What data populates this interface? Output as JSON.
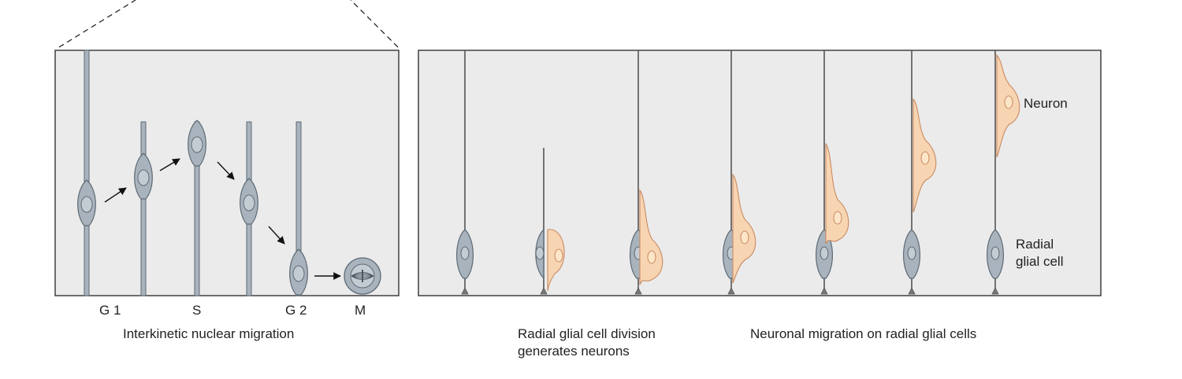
{
  "left_panel": {
    "phase_labels": [
      "G 1",
      "S",
      "G 2",
      "M"
    ],
    "caption": "Interkinetic nuclear migration"
  },
  "right_panel": {
    "caption_division_line1": "Radial glial cell division",
    "caption_division_line2": "generates neurons",
    "caption_migration": "Neuronal migration on radial glial cells",
    "label_neuron": "Neuron",
    "label_radial_line1": "Radial",
    "label_radial_line2": "glial cell"
  },
  "colors": {
    "panel_bg": "#ebebeb",
    "glia_fill": "#a8b3bd",
    "glia_stroke": "#5e6a74",
    "nucleus_fill": "#c4ccd3",
    "neuron_fill": "#f8d5b2",
    "neuron_stroke": "#c98a62",
    "neuron_nucleus": "#fde6c8"
  }
}
